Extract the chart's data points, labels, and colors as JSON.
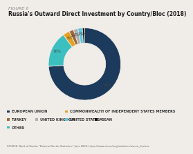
{
  "figure_label": "FIGURE 6",
  "title": "Russia's Outward Direct Investment by Country/Bloc (2018)",
  "slices": [
    {
      "label": "EUROPEAN UNION",
      "value": 74,
      "color": "#1b3a5c",
      "pct_label": "74%"
    },
    {
      "label": "OTHER",
      "value": 16,
      "color": "#3cbfbf",
      "pct_label": "16%"
    },
    {
      "label": "COMMONWEALTH OF INDEPENDENT STATES MEMBERS",
      "value": 3,
      "color": "#e8a020",
      "pct_label": "3%"
    },
    {
      "label": "TURKEY",
      "value": 2,
      "color": "#9b6b3a",
      "pct_label": "2%"
    },
    {
      "label": "UNITED KINGDOM",
      "value": 2,
      "color": "#b0b0b0",
      "pct_label": "2%"
    },
    {
      "label": "UNITED STATES",
      "value": 2,
      "color": "#5bc8e0",
      "pct_label": "2%"
    },
    {
      "label": "ASEAN",
      "value": 1,
      "color": "#111111",
      "pct_label": "1%"
    }
  ],
  "source_text": "SOURCE: Bank of Russia, \"External Sector Statistics,\" June 2020, https://www.cbr.ru/eng/statistics/macro_itm/svs.",
  "bg_color": "#f0ede8",
  "legend_rows": [
    [
      {
        "label": "EUROPEAN UNION",
        "color": "#1b3a5c"
      },
      {
        "label": "COMMONWEALTH OF INDEPENDENT STATES MEMBERS",
        "color": "#e8a020"
      }
    ],
    [
      {
        "label": "TURKEY",
        "color": "#9b6b3a"
      },
      {
        "label": "UNITED KINGDOM",
        "color": "#b0b0b0"
      },
      {
        "label": "UNITED STATES",
        "color": "#5bc8e0"
      },
      {
        "label": "ASEAN",
        "color": "#111111"
      }
    ],
    [
      {
        "label": "OTHER",
        "color": "#3cbfbf"
      }
    ]
  ]
}
